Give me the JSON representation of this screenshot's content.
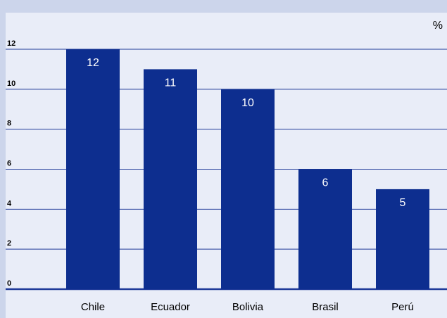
{
  "chart_data": {
    "type": "bar",
    "unit_label": "%",
    "categories": [
      "Chile",
      "Ecuador",
      "Bolivia",
      "Brasil",
      "Perú"
    ],
    "values": [
      12,
      11,
      10,
      6,
      5
    ],
    "data_labels": [
      "12",
      "11",
      "10",
      "6",
      "5"
    ],
    "y_ticks": [
      "0",
      "2",
      "4",
      "6",
      "8",
      "10",
      "12"
    ],
    "ylim": [
      0,
      12
    ],
    "grid": true,
    "colors": {
      "bar": "#0d2e8f",
      "grid": "#1f3a99",
      "background": "#e9edf8",
      "frame": "#ccd5eb",
      "bar_label": "#ffffff",
      "text": "#000000"
    }
  }
}
